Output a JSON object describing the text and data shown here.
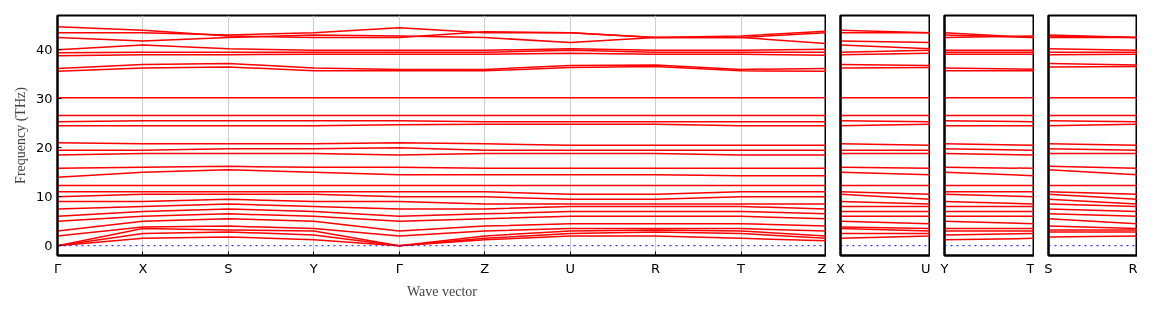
{
  "chart_data": [
    {
      "type": "line",
      "ylabel": "Frequency (THz)",
      "xlabel": "Wave vector",
      "categories": [
        "Γ",
        "X",
        "S",
        "Y",
        "Γ",
        "Z",
        "U",
        "R",
        "T",
        "Z"
      ],
      "ylim": [
        -2,
        47
      ],
      "yticks": [
        0,
        10,
        20,
        30,
        40
      ],
      "grid": "x",
      "ref_lines": [
        {
          "axis": "y",
          "value": 0,
          "label": null,
          "color": "#0000ff",
          "line_style": "dotted"
        }
      ],
      "series": [
        {
          "color": "#ff0000",
          "values": [
            0,
            1.5,
            1.8,
            1.2,
            0,
            1.2,
            2,
            2,
            1.5,
            1
          ]
        },
        {
          "color": "#ff0000",
          "values": [
            0,
            2.5,
            2.8,
            2.2,
            0,
            1.5,
            2.5,
            2.8,
            2.5,
            1.5
          ]
        },
        {
          "color": "#ff0000",
          "values": [
            0,
            3.5,
            3.2,
            3,
            0,
            2,
            3,
            3.2,
            3,
            2
          ]
        },
        {
          "color": "#ff0000",
          "values": [
            2,
            3.8,
            4,
            3.5,
            2,
            3,
            3.5,
            3.5,
            3.5,
            3
          ]
        },
        {
          "color": "#ff0000",
          "values": [
            3,
            5,
            5.5,
            5,
            3,
            4,
            4.5,
            4.5,
            4.5,
            4
          ]
        },
        {
          "color": "#ff0000",
          "values": [
            5,
            6,
            6.5,
            6,
            5,
            5.5,
            6,
            6,
            6,
            5.5
          ]
        },
        {
          "color": "#ff0000",
          "values": [
            6,
            7,
            7.5,
            7,
            6,
            6.5,
            7,
            7,
            7,
            6.5
          ]
        },
        {
          "color": "#ff0000",
          "values": [
            7.5,
            8,
            8.5,
            8,
            7.5,
            7.5,
            8,
            8,
            8,
            7.5
          ]
        },
        {
          "color": "#ff0000",
          "values": [
            9,
            9,
            9.5,
            9,
            9,
            8.5,
            8.5,
            8.5,
            8.5,
            8.5
          ]
        },
        {
          "color": "#ff0000",
          "values": [
            10,
            10.5,
            10.5,
            10.5,
            10,
            10,
            9.5,
            9.5,
            10,
            10
          ]
        },
        {
          "color": "#ff0000",
          "values": [
            11,
            11,
            11,
            11,
            11,
            11,
            10.5,
            10.5,
            11,
            11
          ]
        },
        {
          "color": "#ff0000",
          "values": [
            12.3,
            12.3,
            12.3,
            12.3,
            12.3,
            12.3,
            12.3,
            12.3,
            12.3,
            12.3
          ]
        },
        {
          "color": "#ff0000",
          "values": [
            14,
            15,
            15.5,
            15,
            14.5,
            14.5,
            14.5,
            14.5,
            14.3,
            14.3
          ]
        },
        {
          "color": "#ff0000",
          "values": [
            15.8,
            16,
            16.2,
            16,
            16,
            15.8,
            15.8,
            15.8,
            15.8,
            15.8
          ]
        },
        {
          "color": "#ff0000",
          "values": [
            18.5,
            18.8,
            18.8,
            18.8,
            18.5,
            18.8,
            18.8,
            18.8,
            18.5,
            18.5
          ]
        },
        {
          "color": "#ff0000",
          "values": [
            19.5,
            19.5,
            19.8,
            19.8,
            20,
            19.5,
            19.5,
            19.5,
            19.5,
            19.5
          ]
        },
        {
          "color": "#ff0000",
          "values": [
            21,
            20.8,
            20.8,
            20.8,
            21,
            20.8,
            20.5,
            20.5,
            20.5,
            20.5
          ]
        },
        {
          "color": "#ff0000",
          "values": [
            24.5,
            24.5,
            24.5,
            24.5,
            24.7,
            24.8,
            24.8,
            24.8,
            24.5,
            24.5
          ]
        },
        {
          "color": "#ff0000",
          "values": [
            25.3,
            25.5,
            25.5,
            25.5,
            25.5,
            25.3,
            25.3,
            25.3,
            25.3,
            25.3
          ]
        },
        {
          "color": "#ff0000",
          "values": [
            26.6,
            26.6,
            26.6,
            26.6,
            26.6,
            26.6,
            26.6,
            26.6,
            26.6,
            26.6
          ]
        },
        {
          "color": "#ff0000",
          "values": [
            30.2,
            30.2,
            30.2,
            30.2,
            30.2,
            30.2,
            30.2,
            30.2,
            30.2,
            30.2
          ]
        },
        {
          "color": "#ff0000",
          "values": [
            35.6,
            36.3,
            36.5,
            35.7,
            35.7,
            35.7,
            36.4,
            36.6,
            35.7,
            35.6
          ]
        },
        {
          "color": "#ff0000",
          "values": [
            36.2,
            37,
            37.2,
            36.3,
            36,
            36,
            36.8,
            36.9,
            36,
            36.2
          ]
        },
        {
          "color": "#ff0000",
          "values": [
            38.8,
            39,
            39,
            39.1,
            39.1,
            39.1,
            39.3,
            39.1,
            39.1,
            38.9
          ]
        },
        {
          "color": "#ff0000",
          "values": [
            39.4,
            39.5,
            39.5,
            39.5,
            39.5,
            39.5,
            39.9,
            39.5,
            39.5,
            39.5
          ]
        },
        {
          "color": "#ff0000",
          "values": [
            40,
            41,
            40.2,
            39.9,
            39.9,
            39.9,
            40.2,
            39.9,
            39.9,
            40.1
          ]
        },
        {
          "color": "#ff0000",
          "values": [
            42.5,
            41.8,
            42.5,
            43,
            42.8,
            42.5,
            41.5,
            42.5,
            42.5,
            41.3
          ]
        },
        {
          "color": "#ff0000",
          "values": [
            43.5,
            43.5,
            43,
            43.5,
            44.5,
            43.5,
            43.5,
            42.5,
            42.5,
            43.5
          ]
        },
        {
          "color": "#ff0000",
          "values": [
            44.7,
            44,
            42.8,
            42.5,
            42.5,
            43.7,
            43.5,
            42.5,
            42.8,
            43.8
          ]
        }
      ]
    },
    {
      "type": "line",
      "categories": [
        "X",
        "U"
      ],
      "ylim": [
        -2,
        47
      ],
      "yticks": [
        0,
        10,
        20,
        30,
        40
      ],
      "tick_labels": "x",
      "ref_lines": [
        {
          "axis": "y",
          "value": 0,
          "label": null,
          "color": "#0000ff",
          "line_style": "dotted"
        }
      ],
      "series": [
        {
          "color": "#ff0000",
          "values": [
            1.5,
            2
          ]
        },
        {
          "color": "#ff0000",
          "values": [
            2.5,
            2.5
          ]
        },
        {
          "color": "#ff0000",
          "values": [
            3.5,
            3
          ]
        },
        {
          "color": "#ff0000",
          "values": [
            3.8,
            3.5
          ]
        },
        {
          "color": "#ff0000",
          "values": [
            5,
            4.5
          ]
        },
        {
          "color": "#ff0000",
          "values": [
            6,
            6
          ]
        },
        {
          "color": "#ff0000",
          "values": [
            7,
            7
          ]
        },
        {
          "color": "#ff0000",
          "values": [
            8,
            8
          ]
        },
        {
          "color": "#ff0000",
          "values": [
            9,
            8.5
          ]
        },
        {
          "color": "#ff0000",
          "values": [
            10.5,
            9.5
          ]
        },
        {
          "color": "#ff0000",
          "values": [
            11,
            10.5
          ]
        },
        {
          "color": "#ff0000",
          "values": [
            12.3,
            12.3
          ]
        },
        {
          "color": "#ff0000",
          "values": [
            15,
            14.5
          ]
        },
        {
          "color": "#ff0000",
          "values": [
            16,
            15.8
          ]
        },
        {
          "color": "#ff0000",
          "values": [
            18.8,
            18.8
          ]
        },
        {
          "color": "#ff0000",
          "values": [
            19.5,
            19.5
          ]
        },
        {
          "color": "#ff0000",
          "values": [
            20.8,
            20.5
          ]
        },
        {
          "color": "#ff0000",
          "values": [
            24.5,
            24.8
          ]
        },
        {
          "color": "#ff0000",
          "values": [
            25.5,
            25.3
          ]
        },
        {
          "color": "#ff0000",
          "values": [
            26.6,
            26.6
          ]
        },
        {
          "color": "#ff0000",
          "values": [
            30.2,
            30.2
          ]
        },
        {
          "color": "#ff0000",
          "values": [
            36.3,
            36.4
          ]
        },
        {
          "color": "#ff0000",
          "values": [
            37,
            36.8
          ]
        },
        {
          "color": "#ff0000",
          "values": [
            39,
            39.3
          ]
        },
        {
          "color": "#ff0000",
          "values": [
            39.5,
            39.9
          ]
        },
        {
          "color": "#ff0000",
          "values": [
            41,
            40.2
          ]
        },
        {
          "color": "#ff0000",
          "values": [
            41.8,
            41.5
          ]
        },
        {
          "color": "#ff0000",
          "values": [
            43.5,
            43.5
          ]
        },
        {
          "color": "#ff0000",
          "values": [
            44,
            43.5
          ]
        }
      ]
    },
    {
      "type": "line",
      "categories": [
        "Y",
        "T"
      ],
      "ylim": [
        -2,
        47
      ],
      "yticks": [
        0,
        10,
        20,
        30,
        40
      ],
      "tick_labels": "x",
      "ref_lines": [
        {
          "axis": "y",
          "value": 0,
          "label": null,
          "color": "#0000ff",
          "line_style": "dotted"
        }
      ],
      "series": [
        {
          "color": "#ff0000",
          "values": [
            1.2,
            1.5
          ]
        },
        {
          "color": "#ff0000",
          "values": [
            2.2,
            2.5
          ]
        },
        {
          "color": "#ff0000",
          "values": [
            3,
            3
          ]
        },
        {
          "color": "#ff0000",
          "values": [
            3.5,
            3.5
          ]
        },
        {
          "color": "#ff0000",
          "values": [
            5,
            4.5
          ]
        },
        {
          "color": "#ff0000",
          "values": [
            6,
            6
          ]
        },
        {
          "color": "#ff0000",
          "values": [
            7,
            7
          ]
        },
        {
          "color": "#ff0000",
          "values": [
            8,
            8
          ]
        },
        {
          "color": "#ff0000",
          "values": [
            9,
            8.5
          ]
        },
        {
          "color": "#ff0000",
          "values": [
            10.5,
            10
          ]
        },
        {
          "color": "#ff0000",
          "values": [
            11,
            11
          ]
        },
        {
          "color": "#ff0000",
          "values": [
            12.3,
            12.3
          ]
        },
        {
          "color": "#ff0000",
          "values": [
            15,
            14.3
          ]
        },
        {
          "color": "#ff0000",
          "values": [
            16,
            15.8
          ]
        },
        {
          "color": "#ff0000",
          "values": [
            18.8,
            18.5
          ]
        },
        {
          "color": "#ff0000",
          "values": [
            19.8,
            19.5
          ]
        },
        {
          "color": "#ff0000",
          "values": [
            20.8,
            20.5
          ]
        },
        {
          "color": "#ff0000",
          "values": [
            24.5,
            24.5
          ]
        },
        {
          "color": "#ff0000",
          "values": [
            25.5,
            25.3
          ]
        },
        {
          "color": "#ff0000",
          "values": [
            26.6,
            26.6
          ]
        },
        {
          "color": "#ff0000",
          "values": [
            30.2,
            30.2
          ]
        },
        {
          "color": "#ff0000",
          "values": [
            35.7,
            35.7
          ]
        },
        {
          "color": "#ff0000",
          "values": [
            36.3,
            36
          ]
        },
        {
          "color": "#ff0000",
          "values": [
            39.1,
            39.1
          ]
        },
        {
          "color": "#ff0000",
          "values": [
            39.5,
            39.5
          ]
        },
        {
          "color": "#ff0000",
          "values": [
            39.9,
            39.9
          ]
        },
        {
          "color": "#ff0000",
          "values": [
            43,
            42.5
          ]
        },
        {
          "color": "#ff0000",
          "values": [
            43.5,
            42.5
          ]
        },
        {
          "color": "#ff0000",
          "values": [
            42.5,
            42.8
          ]
        }
      ]
    },
    {
      "type": "line",
      "categories": [
        "S",
        "R"
      ],
      "ylim": [
        -2,
        47
      ],
      "yticks": [
        0,
        10,
        20,
        30,
        40
      ],
      "tick_labels": "x",
      "ref_lines": [
        {
          "axis": "y",
          "value": 0,
          "label": null,
          "color": "#0000ff",
          "line_style": "dotted"
        }
      ],
      "series": [
        {
          "color": "#ff0000",
          "values": [
            1.8,
            2
          ]
        },
        {
          "color": "#ff0000",
          "values": [
            2.8,
            2.8
          ]
        },
        {
          "color": "#ff0000",
          "values": [
            3.2,
            3.2
          ]
        },
        {
          "color": "#ff0000",
          "values": [
            4,
            3.5
          ]
        },
        {
          "color": "#ff0000",
          "values": [
            5.5,
            4.5
          ]
        },
        {
          "color": "#ff0000",
          "values": [
            6.5,
            6
          ]
        },
        {
          "color": "#ff0000",
          "values": [
            7.5,
            7
          ]
        },
        {
          "color": "#ff0000",
          "values": [
            8.5,
            8
          ]
        },
        {
          "color": "#ff0000",
          "values": [
            9.5,
            8.5
          ]
        },
        {
          "color": "#ff0000",
          "values": [
            10.5,
            9.5
          ]
        },
        {
          "color": "#ff0000",
          "values": [
            11,
            10.5
          ]
        },
        {
          "color": "#ff0000",
          "values": [
            12.3,
            12.3
          ]
        },
        {
          "color": "#ff0000",
          "values": [
            15.5,
            14.5
          ]
        },
        {
          "color": "#ff0000",
          "values": [
            16.2,
            15.8
          ]
        },
        {
          "color": "#ff0000",
          "values": [
            18.8,
            18.8
          ]
        },
        {
          "color": "#ff0000",
          "values": [
            19.8,
            19.5
          ]
        },
        {
          "color": "#ff0000",
          "values": [
            20.8,
            20.5
          ]
        },
        {
          "color": "#ff0000",
          "values": [
            24.5,
            24.8
          ]
        },
        {
          "color": "#ff0000",
          "values": [
            25.5,
            25.3
          ]
        },
        {
          "color": "#ff0000",
          "values": [
            26.6,
            26.6
          ]
        },
        {
          "color": "#ff0000",
          "values": [
            30.2,
            30.2
          ]
        },
        {
          "color": "#ff0000",
          "values": [
            36.5,
            36.6
          ]
        },
        {
          "color": "#ff0000",
          "values": [
            37.2,
            36.9
          ]
        },
        {
          "color": "#ff0000",
          "values": [
            39,
            39.1
          ]
        },
        {
          "color": "#ff0000",
          "values": [
            39.5,
            39.5
          ]
        },
        {
          "color": "#ff0000",
          "values": [
            40.2,
            39.9
          ]
        },
        {
          "color": "#ff0000",
          "values": [
            42.5,
            42.5
          ]
        },
        {
          "color": "#ff0000",
          "values": [
            43,
            42.5
          ]
        },
        {
          "color": "#ff0000",
          "values": [
            42.8,
            42.5
          ]
        }
      ]
    }
  ]
}
